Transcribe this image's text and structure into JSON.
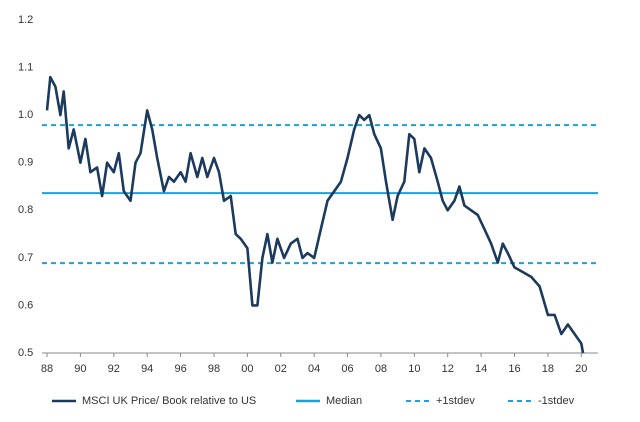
{
  "chart_data": {
    "type": "line",
    "x": [
      1988.0,
      1988.2,
      1988.5,
      1988.8,
      1989.0,
      1989.3,
      1989.6,
      1990.0,
      1990.3,
      1990.6,
      1991.0,
      1991.3,
      1991.6,
      1992.0,
      1992.3,
      1992.6,
      1993.0,
      1993.3,
      1993.6,
      1994.0,
      1994.3,
      1994.6,
      1995.0,
      1995.3,
      1995.6,
      1996.0,
      1996.3,
      1996.6,
      1997.0,
      1997.3,
      1997.6,
      1998.0,
      1998.3,
      1998.6,
      1999.0,
      1999.3,
      1999.6,
      2000.0,
      2000.3,
      2000.6,
      2000.9,
      2001.2,
      2001.5,
      2001.8,
      2002.2,
      2002.6,
      2003.0,
      2003.3,
      2003.6,
      2004.0,
      2004.4,
      2004.8,
      2005.2,
      2005.6,
      2006.0,
      2006.4,
      2006.7,
      2007.0,
      2007.3,
      2007.6,
      2008.0,
      2008.3,
      2008.7,
      2009.0,
      2009.4,
      2009.7,
      2010.0,
      2010.3,
      2010.6,
      2011.0,
      2011.4,
      2011.7,
      2012.0,
      2012.4,
      2012.7,
      2013.0,
      2013.4,
      2013.8,
      2014.2,
      2014.6,
      2015.0,
      2015.3,
      2015.6,
      2016.0,
      2016.5,
      2017.0,
      2017.5,
      2018.0,
      2018.4,
      2018.8,
      2019.2,
      2019.6,
      2020.0,
      2020.1
    ],
    "series": [
      {
        "name": "MSCI UK Price/ Book relative to US",
        "color": "#1c3a5e",
        "values": [
          1.01,
          1.08,
          1.06,
          1.0,
          1.05,
          0.93,
          0.97,
          0.9,
          0.95,
          0.88,
          0.89,
          0.83,
          0.9,
          0.88,
          0.92,
          0.84,
          0.82,
          0.9,
          0.92,
          1.01,
          0.97,
          0.91,
          0.84,
          0.87,
          0.86,
          0.88,
          0.86,
          0.92,
          0.87,
          0.91,
          0.87,
          0.91,
          0.88,
          0.82,
          0.83,
          0.75,
          0.74,
          0.72,
          0.6,
          0.6,
          0.7,
          0.75,
          0.69,
          0.74,
          0.7,
          0.73,
          0.74,
          0.7,
          0.71,
          0.7,
          0.76,
          0.82,
          0.84,
          0.86,
          0.91,
          0.97,
          1.0,
          0.99,
          1.0,
          0.96,
          0.93,
          0.86,
          0.78,
          0.83,
          0.86,
          0.96,
          0.95,
          0.88,
          0.93,
          0.91,
          0.86,
          0.82,
          0.8,
          0.82,
          0.85,
          0.81,
          0.8,
          0.79,
          0.76,
          0.73,
          0.69,
          0.73,
          0.71,
          0.68,
          0.67,
          0.66,
          0.64,
          0.58,
          0.58,
          0.54,
          0.56,
          0.54,
          0.52,
          0.5
        ]
      }
    ],
    "reference_lines": [
      {
        "name": "Median",
        "color": "#1fa0d8",
        "value": 0.836,
        "dash": false
      },
      {
        "name": "+1stdev",
        "color": "#1fa0d8",
        "value": 0.979,
        "dash": true
      },
      {
        "name": "-1stdev",
        "color": "#1fa0d8",
        "value": 0.689,
        "dash": true
      }
    ],
    "xlim": [
      1987.7,
      2021
    ],
    "xticks": [
      {
        "value": 1988,
        "label": "88"
      },
      {
        "value": 1990,
        "label": "90"
      },
      {
        "value": 1992,
        "label": "92"
      },
      {
        "value": 1994,
        "label": "94"
      },
      {
        "value": 1996,
        "label": "96"
      },
      {
        "value": 1998,
        "label": "98"
      },
      {
        "value": 2000,
        "label": "00"
      },
      {
        "value": 2002,
        "label": "02"
      },
      {
        "value": 2004,
        "label": "04"
      },
      {
        "value": 2006,
        "label": "06"
      },
      {
        "value": 2008,
        "label": "08"
      },
      {
        "value": 2010,
        "label": "10"
      },
      {
        "value": 2012,
        "label": "12"
      },
      {
        "value": 2014,
        "label": "14"
      },
      {
        "value": 2016,
        "label": "16"
      },
      {
        "value": 2018,
        "label": "18"
      },
      {
        "value": 2020,
        "label": "20"
      }
    ],
    "ylim": [
      0.5,
      1.2
    ],
    "yticks": [
      0.5,
      0.6,
      0.7,
      0.8,
      0.9,
      {
        "value": 1,
        "label": "1.0"
      },
      1.1,
      1.2
    ],
    "legend": "bottom"
  }
}
